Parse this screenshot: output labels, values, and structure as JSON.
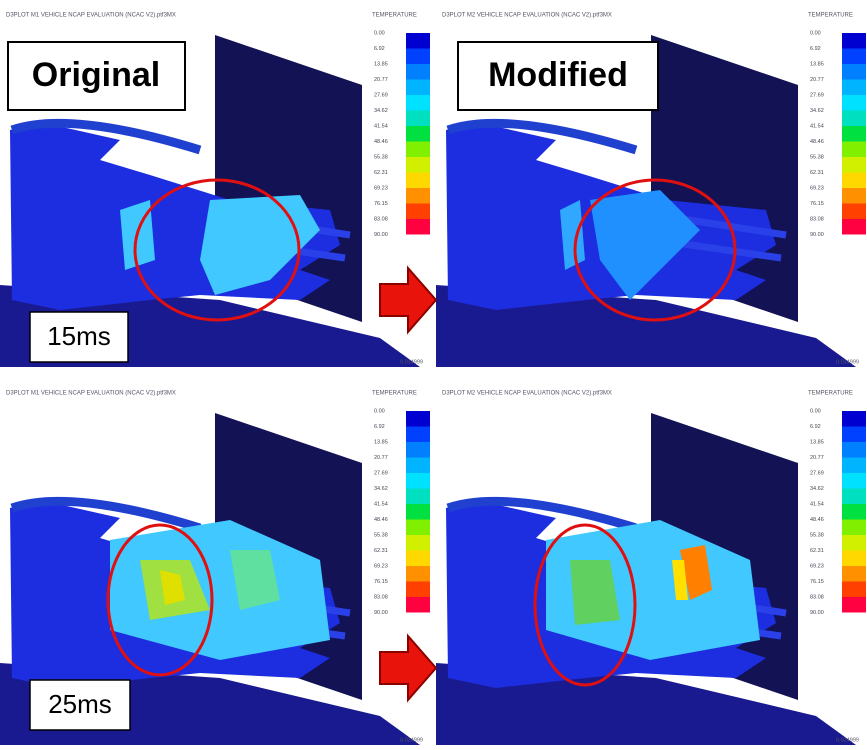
{
  "panels": [
    {
      "header": "D3PLOT M1 VEHICLE NCAP EVALUATION (NCAC V2).ptf3MX",
      "time": "0.014999"
    },
    {
      "header": "D3PLOT M2 VEHICLE NCAP EVALUATION (NCAC V2).ptf3MX",
      "time": "0.014999"
    },
    {
      "header": "D3PLOT M1 VEHICLE NCAP EVALUATION (NCAC V2).ptf3MX",
      "time": "0.024999"
    },
    {
      "header": "D3PLOT M2 VEHICLE NCAP EVALUATION (NCAC V2).ptf3MX",
      "time": "0.024999"
    }
  ],
  "legend": {
    "title": "TEMPERATURE",
    "labels": [
      "0.00",
      "6.92",
      "13.85",
      "20.77",
      "27.69",
      "34.62",
      "41.54",
      "48.46",
      "55.38",
      "62.31",
      "69.23",
      "76.15",
      "83.08",
      "90.00"
    ]
  },
  "labels": {
    "original": "Original",
    "modified": "Modified",
    "time_1": "15ms",
    "time_2": "25ms"
  }
}
